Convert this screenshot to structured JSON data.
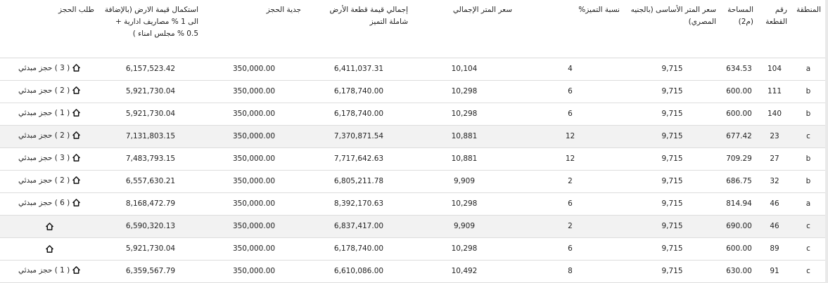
{
  "table": {
    "headers": {
      "region": "المنطقة",
      "plot_no": "رقم القطعة",
      "area": "المساحة (م2)",
      "base_price": "سعر المتر الأساسى (بالجنيه المصري)",
      "premium_pct": "نسبة التميز%",
      "total_price_per_meter": "سعر المتر الإجمالي",
      "total_land_value": "إجمالي قيمة قطعة الأرض شاملة التميز",
      "booking_deposit": "جدية الحجز",
      "remaining_value": "استكمال قيمة الارض (بالإضافة الى 1 % مصاريف ادارية + 0.5 % مجلس امناء )",
      "booking_request": "طلب الحجز"
    },
    "rows": [
      {
        "region": "a",
        "plot_no": "104",
        "area": "634.53",
        "base_price": "9,715",
        "premium_pct": "4",
        "total_price_per_meter": "10,104",
        "total_land_value": "6,411,037.31",
        "booking_deposit": "350,000.00",
        "remaining_value": "6,157,523.42",
        "booking_request": "( 3 ) حجز مبدئي"
      },
      {
        "region": "b",
        "plot_no": "111",
        "area": "600.00",
        "base_price": "9,715",
        "premium_pct": "6",
        "total_price_per_meter": "10,298",
        "total_land_value": "6,178,740.00",
        "booking_deposit": "350,000.00",
        "remaining_value": "5,921,730.04",
        "booking_request": "( 2 ) حجز مبدئي"
      },
      {
        "region": "b",
        "plot_no": "140",
        "area": "600.00",
        "base_price": "9,715",
        "premium_pct": "6",
        "total_price_per_meter": "10,298",
        "total_land_value": "6,178,740.00",
        "booking_deposit": "350,000.00",
        "remaining_value": "5,921,730.04",
        "booking_request": "( 1 ) حجز مبدئي"
      },
      {
        "region": "c",
        "plot_no": "23",
        "area": "677.42",
        "base_price": "9,715",
        "premium_pct": "12",
        "total_price_per_meter": "10,881",
        "total_land_value": "7,370,871.54",
        "booking_deposit": "350,000.00",
        "remaining_value": "7,131,803.15",
        "booking_request": "( 2 ) حجز مبدئي"
      },
      {
        "region": "b",
        "plot_no": "27",
        "area": "709.29",
        "base_price": "9,715",
        "premium_pct": "12",
        "total_price_per_meter": "10,881",
        "total_land_value": "7,717,642.63",
        "booking_deposit": "350,000.00",
        "remaining_value": "7,483,793.15",
        "booking_request": "( 3 ) حجز مبدئي"
      },
      {
        "region": "b",
        "plot_no": "32",
        "area": "686.75",
        "base_price": "9,715",
        "premium_pct": "2",
        "total_price_per_meter": "9,909",
        "total_land_value": "6,805,211.78",
        "booking_deposit": "350,000.00",
        "remaining_value": "6,557,630.21",
        "booking_request": "( 2 ) حجز مبدئي"
      },
      {
        "region": "a",
        "plot_no": "46",
        "area": "814.94",
        "base_price": "9,715",
        "premium_pct": "6",
        "total_price_per_meter": "10,298",
        "total_land_value": "8,392,170.63",
        "booking_deposit": "350,000.00",
        "remaining_value": "8,168,472.79",
        "booking_request": "( 6 ) حجز مبدئي"
      },
      {
        "region": "c",
        "plot_no": "46",
        "area": "690.00",
        "base_price": "9,715",
        "premium_pct": "2",
        "total_price_per_meter": "9,909",
        "total_land_value": "6,837,417.00",
        "booking_deposit": "350,000.00",
        "remaining_value": "6,590,320.13",
        "booking_request": ""
      },
      {
        "region": "c",
        "plot_no": "89",
        "area": "600.00",
        "base_price": "9,715",
        "premium_pct": "6",
        "total_price_per_meter": "10,298",
        "total_land_value": "6,178,740.00",
        "booking_deposit": "350,000.00",
        "remaining_value": "5,921,730.04",
        "booking_request": ""
      },
      {
        "region": "c",
        "plot_no": "91",
        "area": "630.00",
        "base_price": "9,715",
        "premium_pct": "8",
        "total_price_per_meter": "10,492",
        "total_land_value": "6,610,086.00",
        "booking_deposit": "350,000.00",
        "remaining_value": "6,359,567.79",
        "booking_request": "( 1 ) حجز مبدئي"
      }
    ]
  },
  "icons": {
    "booking": "home-icon"
  },
  "colors": {
    "shaded_row": "#f2f2f2",
    "border": "#dddddd",
    "text": "#222222"
  }
}
